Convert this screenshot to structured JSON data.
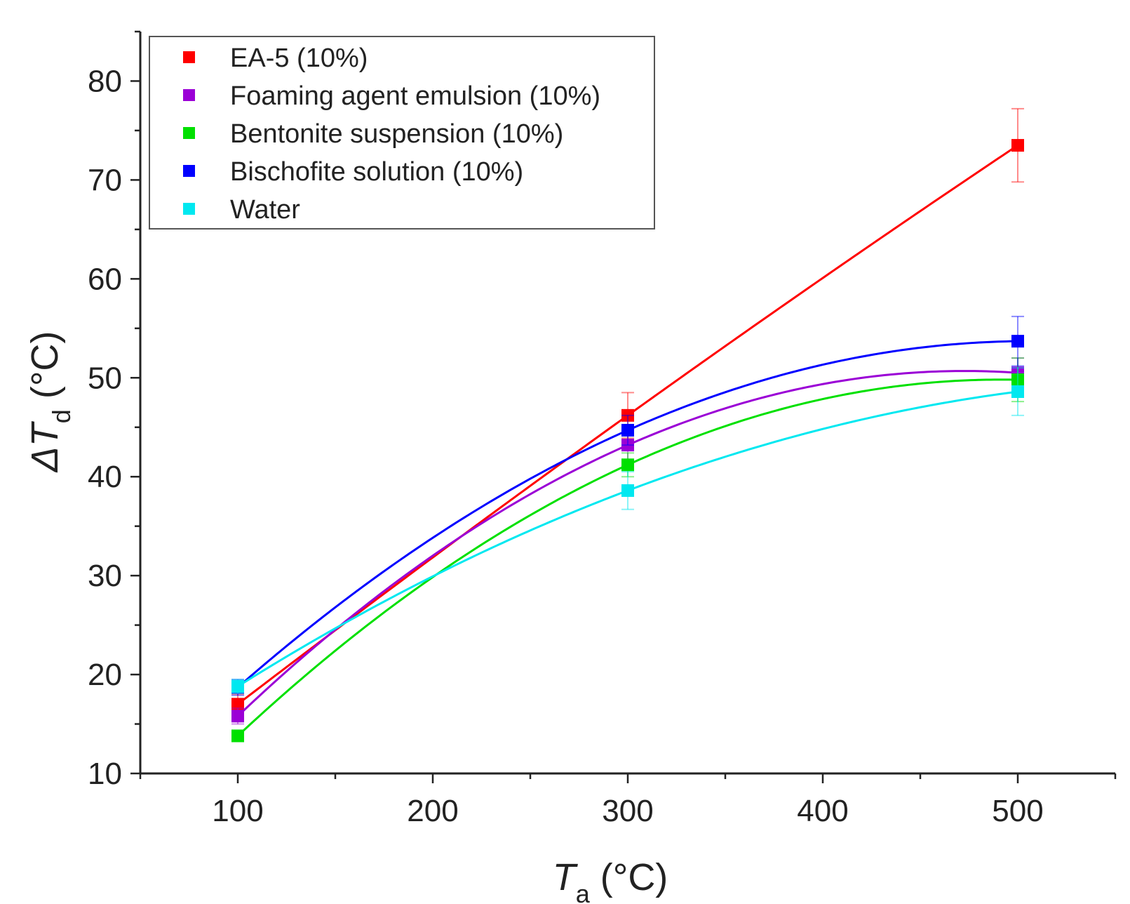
{
  "chart_data": {
    "type": "scatter",
    "title": "",
    "xlabel": {
      "symbol": "T",
      "sub": "a",
      "unit": " (°C)"
    },
    "ylabel": {
      "symbol": "ΔT",
      "sub": "d",
      "unit": " (°C)"
    },
    "xlim": [
      50,
      550
    ],
    "ylim": [
      10,
      85
    ],
    "xticks": [
      100,
      200,
      300,
      400,
      500
    ],
    "yticks": [
      10,
      20,
      30,
      40,
      50,
      60,
      70,
      80
    ],
    "x": [
      100,
      300,
      500
    ],
    "legend_position": "top-left",
    "series": [
      {
        "name": "EA-5 (10%)",
        "color": "#ff0000",
        "values": [
          17.0,
          46.2,
          73.5
        ],
        "errors": [
          1.0,
          2.3,
          3.7
        ]
      },
      {
        "name": "Foaming agent emulsion (10%)",
        "color": "#9b00d6",
        "values": [
          15.8,
          43.2,
          50.5
        ],
        "errors": [
          0.8,
          1.5,
          1.5
        ]
      },
      {
        "name": "Bentonite suspension (10%)",
        "color": "#00e000",
        "values": [
          13.8,
          41.2,
          49.8
        ],
        "errors": [
          0.5,
          1.2,
          2.2
        ]
      },
      {
        "name": "Bischofite solution (10%)",
        "color": "#0000ff",
        "values": [
          18.7,
          44.7,
          53.7
        ],
        "errors": [
          0.8,
          1.5,
          2.5
        ]
      },
      {
        "name": "Water",
        "color": "#00e8f0",
        "values": [
          18.8,
          38.6,
          48.6
        ],
        "errors": [
          0.7,
          1.9,
          2.4
        ]
      }
    ]
  }
}
